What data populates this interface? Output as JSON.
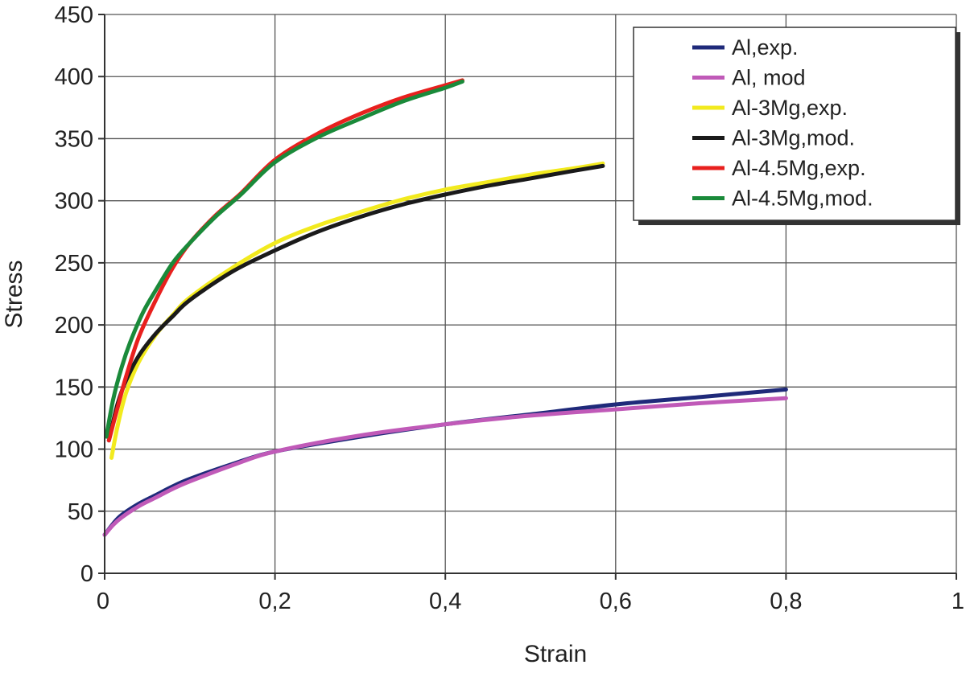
{
  "chart_data": {
    "type": "line",
    "title": "",
    "xlabel": "Strain",
    "ylabel": "Stress",
    "xlim": [
      0,
      1
    ],
    "ylim": [
      0,
      450
    ],
    "grid": true,
    "legend_position": "top-right",
    "x_ticks": [
      0,
      0.2,
      0.4,
      0.6,
      0.8,
      1
    ],
    "x_tick_labels": [
      "0",
      "0,2",
      "0,4",
      "0,6",
      "0,8",
      "1"
    ],
    "y_ticks": [
      0,
      50,
      100,
      150,
      200,
      250,
      300,
      350,
      400,
      450
    ],
    "y_tick_labels": [
      "0",
      "50",
      "100",
      "150",
      "200",
      "250",
      "300",
      "350",
      "400",
      "450"
    ],
    "series": [
      {
        "name": "Al,exp.",
        "color": "#1f2a7a",
        "x": [
          0,
          0.01,
          0.02,
          0.04,
          0.06,
          0.08,
          0.1,
          0.15,
          0.2,
          0.3,
          0.4,
          0.5,
          0.6,
          0.7,
          0.8
        ],
        "y": [
          31,
          40,
          47,
          56,
          63,
          70,
          76,
          88,
          98,
          110,
          120,
          128,
          136,
          142,
          148
        ]
      },
      {
        "name": "Al, mod",
        "color": "#c05ab8",
        "x": [
          0,
          0.01,
          0.02,
          0.04,
          0.06,
          0.08,
          0.1,
          0.15,
          0.2,
          0.3,
          0.4,
          0.5,
          0.6,
          0.7,
          0.8
        ],
        "y": [
          31,
          39,
          45,
          54,
          61,
          68,
          74,
          87,
          98,
          111,
          120,
          127,
          132,
          137,
          141
        ]
      },
      {
        "name": "Al-3Mg,exp.",
        "color": "#f2ea1e",
        "x": [
          0.008,
          0.015,
          0.025,
          0.04,
          0.06,
          0.08,
          0.1,
          0.15,
          0.2,
          0.25,
          0.3,
          0.35,
          0.4,
          0.45,
          0.5,
          0.55,
          0.585
        ],
        "y": [
          93,
          118,
          145,
          170,
          192,
          208,
          222,
          246,
          266,
          280,
          291,
          301,
          309,
          315,
          321,
          326,
          330
        ]
      },
      {
        "name": "Al-3Mg,mod.",
        "color": "#1a1a1a",
        "x": [
          0.005,
          0.015,
          0.025,
          0.04,
          0.06,
          0.08,
          0.1,
          0.15,
          0.2,
          0.25,
          0.3,
          0.35,
          0.4,
          0.45,
          0.5,
          0.55,
          0.585
        ],
        "y": [
          107,
          136,
          155,
          175,
          193,
          207,
          220,
          243,
          260,
          275,
          287,
          297,
          305,
          312,
          318,
          324,
          328
        ]
      },
      {
        "name": "Al-4.5Mg,exp.",
        "color": "#e8201e",
        "x": [
          0.005,
          0.015,
          0.025,
          0.04,
          0.06,
          0.08,
          0.1,
          0.13,
          0.16,
          0.2,
          0.25,
          0.3,
          0.35,
          0.4,
          0.42
        ],
        "y": [
          107,
          133,
          158,
          190,
          220,
          246,
          266,
          288,
          306,
          333,
          354,
          370,
          383,
          393,
          397
        ]
      },
      {
        "name": "Al-4.5Mg,mod.",
        "color": "#1a8a3a",
        "x": [
          0.002,
          0.01,
          0.02,
          0.03,
          0.045,
          0.06,
          0.08,
          0.1,
          0.13,
          0.16,
          0.2,
          0.25,
          0.3,
          0.35,
          0.4,
          0.42
        ],
        "y": [
          110,
          140,
          166,
          186,
          210,
          228,
          250,
          266,
          287,
          305,
          331,
          351,
          366,
          380,
          391,
          396
        ]
      }
    ]
  }
}
